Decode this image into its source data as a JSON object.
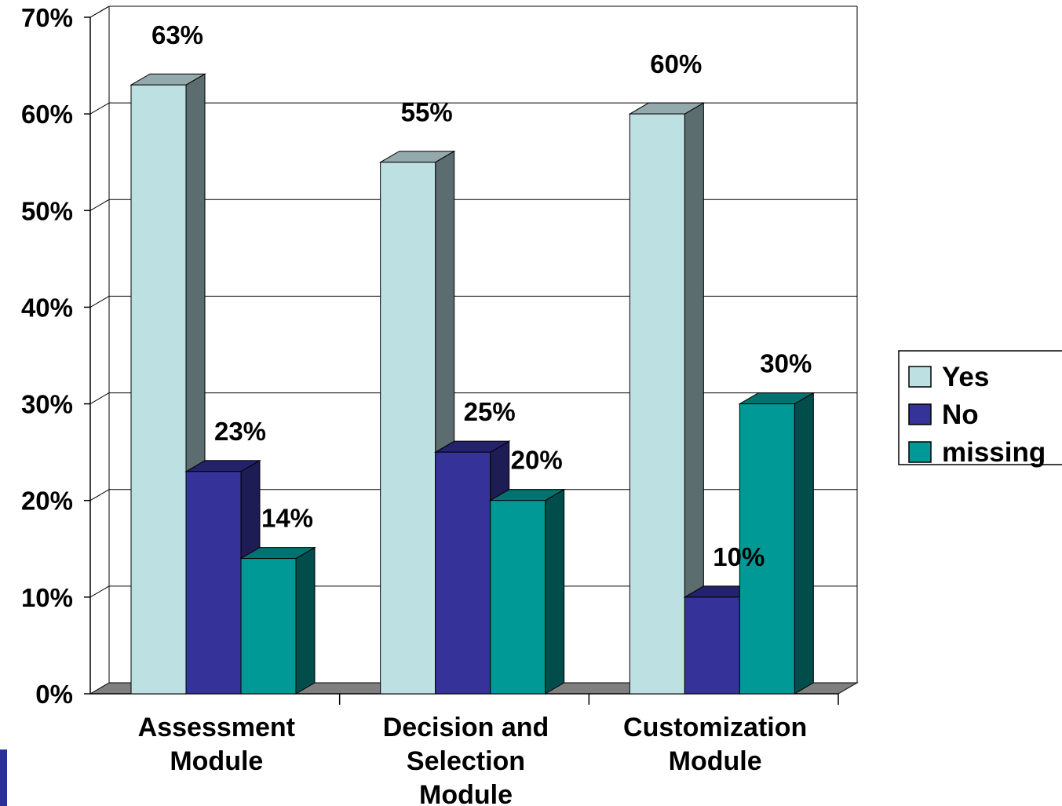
{
  "chart_data": {
    "type": "bar",
    "categories": [
      [
        "Assessment",
        "Module"
      ],
      [
        "Decision and",
        "Selection",
        "Module"
      ],
      [
        "Customization",
        "Module"
      ]
    ],
    "series": [
      {
        "name": "Yes",
        "values": [
          63,
          55,
          60
        ],
        "labels": [
          "63%",
          "55%",
          "60%"
        ]
      },
      {
        "name": "No",
        "values": [
          23,
          25,
          10
        ],
        "labels": [
          "23%",
          "25%",
          "10%"
        ]
      },
      {
        "name": "missing",
        "values": [
          14,
          20,
          30
        ],
        "labels": [
          "14%",
          "20%",
          "30%"
        ]
      }
    ],
    "ylim": [
      0,
      70
    ],
    "yticks": [
      "0%",
      "10%",
      "20%",
      "30%",
      "40%",
      "50%",
      "60%",
      "70%"
    ],
    "grid": true,
    "legend": "right",
    "colors": {
      "Yes": {
        "front": "#bde0e3",
        "side": "#5c6d70",
        "top": "#93a9ab"
      },
      "No": {
        "front": "#35339a",
        "side": "#1e1c55",
        "top": "#23226a"
      },
      "missing": {
        "front": "#009996",
        "side": "#004d4b",
        "top": "#007270"
      },
      "floor": "#7f7f7f",
      "grid": "#000000"
    }
  }
}
